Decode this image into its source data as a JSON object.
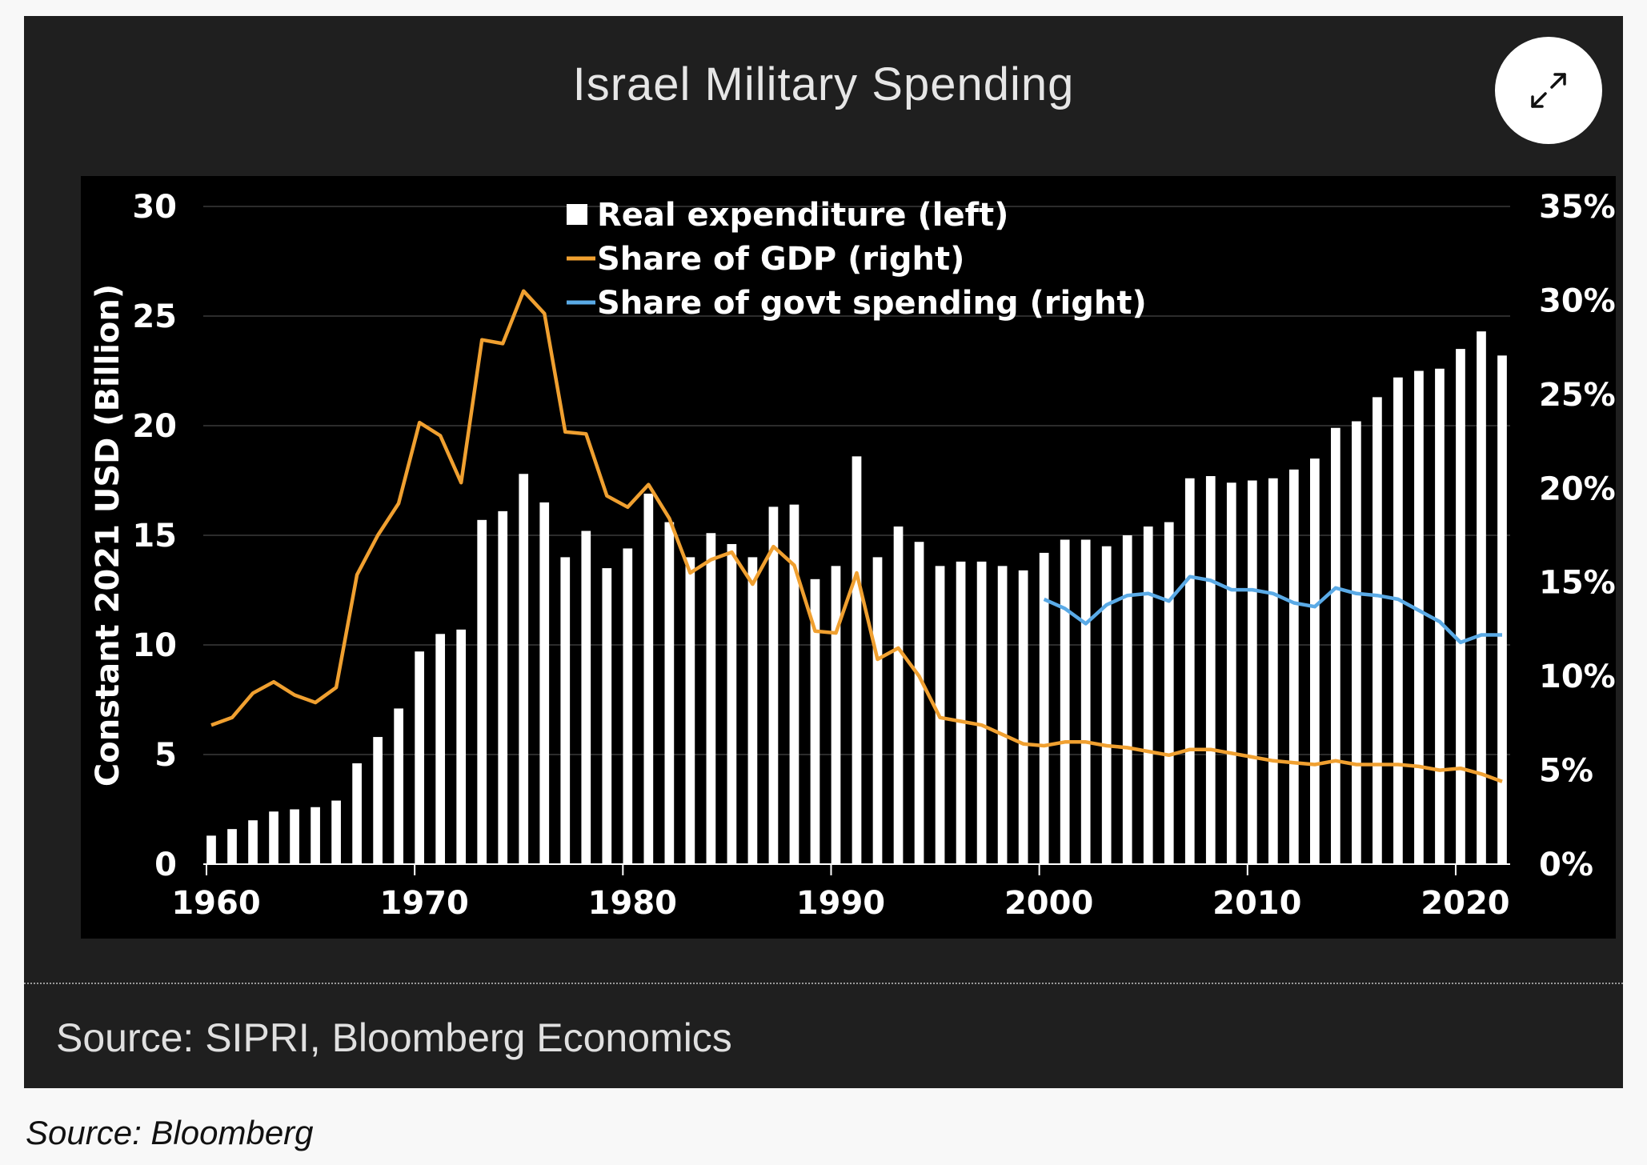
{
  "title": "Israel Military Spending",
  "chart_source": "Source: SIPRI, Bloomberg Economics",
  "caption": "Source: Bloomberg",
  "expand_icon": "expand-arrows-icon",
  "colors": {
    "background": "#1f1f1f",
    "plot_background": "#000000",
    "bars": "#ffffff",
    "gdp_line": "#f0a030",
    "govt_line": "#5aaae6",
    "text": "#ffffff"
  },
  "chart_data": {
    "type": "bar",
    "title": "Israel Military Spending",
    "ylabel": "Constant 2021 USD (Billion)",
    "ylim": [
      0,
      30
    ],
    "y2lim": [
      0,
      35
    ],
    "yticks": [
      "0",
      "5",
      "10",
      "15",
      "20",
      "25",
      "30"
    ],
    "y2ticks": [
      "0%",
      "5%",
      "10%",
      "15%",
      "20%",
      "25%",
      "30%",
      "35%"
    ],
    "xticks": [
      "1960",
      "1970",
      "1980",
      "1990",
      "2000",
      "2010",
      "2020"
    ],
    "legend_position": "top-center",
    "legend": [
      "Real expenditure (left)",
      "Share of GDP (right)",
      "Share of govt spending (right)"
    ],
    "x": [
      1960,
      1961,
      1962,
      1963,
      1964,
      1965,
      1966,
      1967,
      1968,
      1969,
      1970,
      1971,
      1972,
      1973,
      1974,
      1975,
      1976,
      1977,
      1978,
      1979,
      1980,
      1981,
      1982,
      1983,
      1984,
      1985,
      1986,
      1987,
      1988,
      1989,
      1990,
      1991,
      1992,
      1993,
      1994,
      1995,
      1996,
      1997,
      1998,
      1999,
      2000,
      2001,
      2002,
      2003,
      2004,
      2005,
      2006,
      2007,
      2008,
      2009,
      2010,
      2011,
      2012,
      2013,
      2014,
      2015,
      2016,
      2017,
      2018,
      2019,
      2020,
      2021,
      2022
    ],
    "series": [
      {
        "name": "Real expenditure (left)",
        "axis": "left",
        "type": "bar",
        "values": [
          1.3,
          1.6,
          2.0,
          2.4,
          2.5,
          2.6,
          2.9,
          4.6,
          5.8,
          7.1,
          9.7,
          10.5,
          10.7,
          15.7,
          16.1,
          17.8,
          16.5,
          14.0,
          15.2,
          13.5,
          14.4,
          16.9,
          15.6,
          14.0,
          15.1,
          14.6,
          14.0,
          16.3,
          16.4,
          13.0,
          13.6,
          18.6,
          14.0,
          15.4,
          14.7,
          13.6,
          13.8,
          13.8,
          13.6,
          13.4,
          14.2,
          14.8,
          14.8,
          14.5,
          15.0,
          15.4,
          15.6,
          17.6,
          17.7,
          17.4,
          17.5,
          17.6,
          18.0,
          18.5,
          19.9,
          20.2,
          21.3,
          22.2,
          22.5,
          22.6,
          23.5,
          24.3,
          23.2
        ]
      },
      {
        "name": "Share of GDP (right)",
        "axis": "right",
        "type": "line",
        "x": [
          1960,
          1961,
          1962,
          1963,
          1964,
          1965,
          1966,
          1967,
          1968,
          1969,
          1970,
          1971,
          1972,
          1973,
          1974,
          1975,
          1976,
          1977,
          1978,
          1979,
          1980,
          1981,
          1982,
          1983,
          1984,
          1985,
          1986,
          1987,
          1988,
          1989,
          1990,
          1991,
          1992,
          1993,
          1994,
          1995,
          1996,
          1997,
          1998,
          1999,
          2000,
          2001,
          2002,
          2003,
          2004,
          2005,
          2006,
          2007,
          2008,
          2009,
          2010,
          2011,
          2012,
          2013,
          2014,
          2015,
          2016,
          2017,
          2018,
          2019,
          2020,
          2021,
          2022
        ],
        "values": [
          7.4,
          7.8,
          9.1,
          9.7,
          9.0,
          8.6,
          9.4,
          15.4,
          17.5,
          19.2,
          23.5,
          22.8,
          20.3,
          27.9,
          27.7,
          30.5,
          29.3,
          23.0,
          22.9,
          19.6,
          19.0,
          20.2,
          18.4,
          15.5,
          16.2,
          16.6,
          14.9,
          16.9,
          15.9,
          12.4,
          12.3,
          15.5,
          10.9,
          11.5,
          10.0,
          7.8,
          7.6,
          7.4,
          6.9,
          6.4,
          6.3,
          6.5,
          6.5,
          6.3,
          6.2,
          6.0,
          5.8,
          6.1,
          6.1,
          5.9,
          5.7,
          5.5,
          5.4,
          5.3,
          5.5,
          5.3,
          5.3,
          5.3,
          5.2,
          5.0,
          5.1,
          4.8,
          4.4
        ]
      },
      {
        "name": "Share of govt spending (right)",
        "axis": "right",
        "type": "line",
        "x": [
          2000,
          2001,
          2002,
          2003,
          2004,
          2005,
          2006,
          2007,
          2008,
          2009,
          2010,
          2011,
          2012,
          2013,
          2014,
          2015,
          2016,
          2017,
          2018,
          2019,
          2020,
          2021,
          2022
        ],
        "values": [
          14.1,
          13.6,
          12.8,
          13.8,
          14.3,
          14.4,
          14.0,
          15.3,
          15.1,
          14.6,
          14.6,
          14.4,
          13.9,
          13.7,
          14.7,
          14.4,
          14.3,
          14.1,
          13.5,
          12.9,
          11.8,
          12.2,
          12.2
        ]
      }
    ]
  }
}
